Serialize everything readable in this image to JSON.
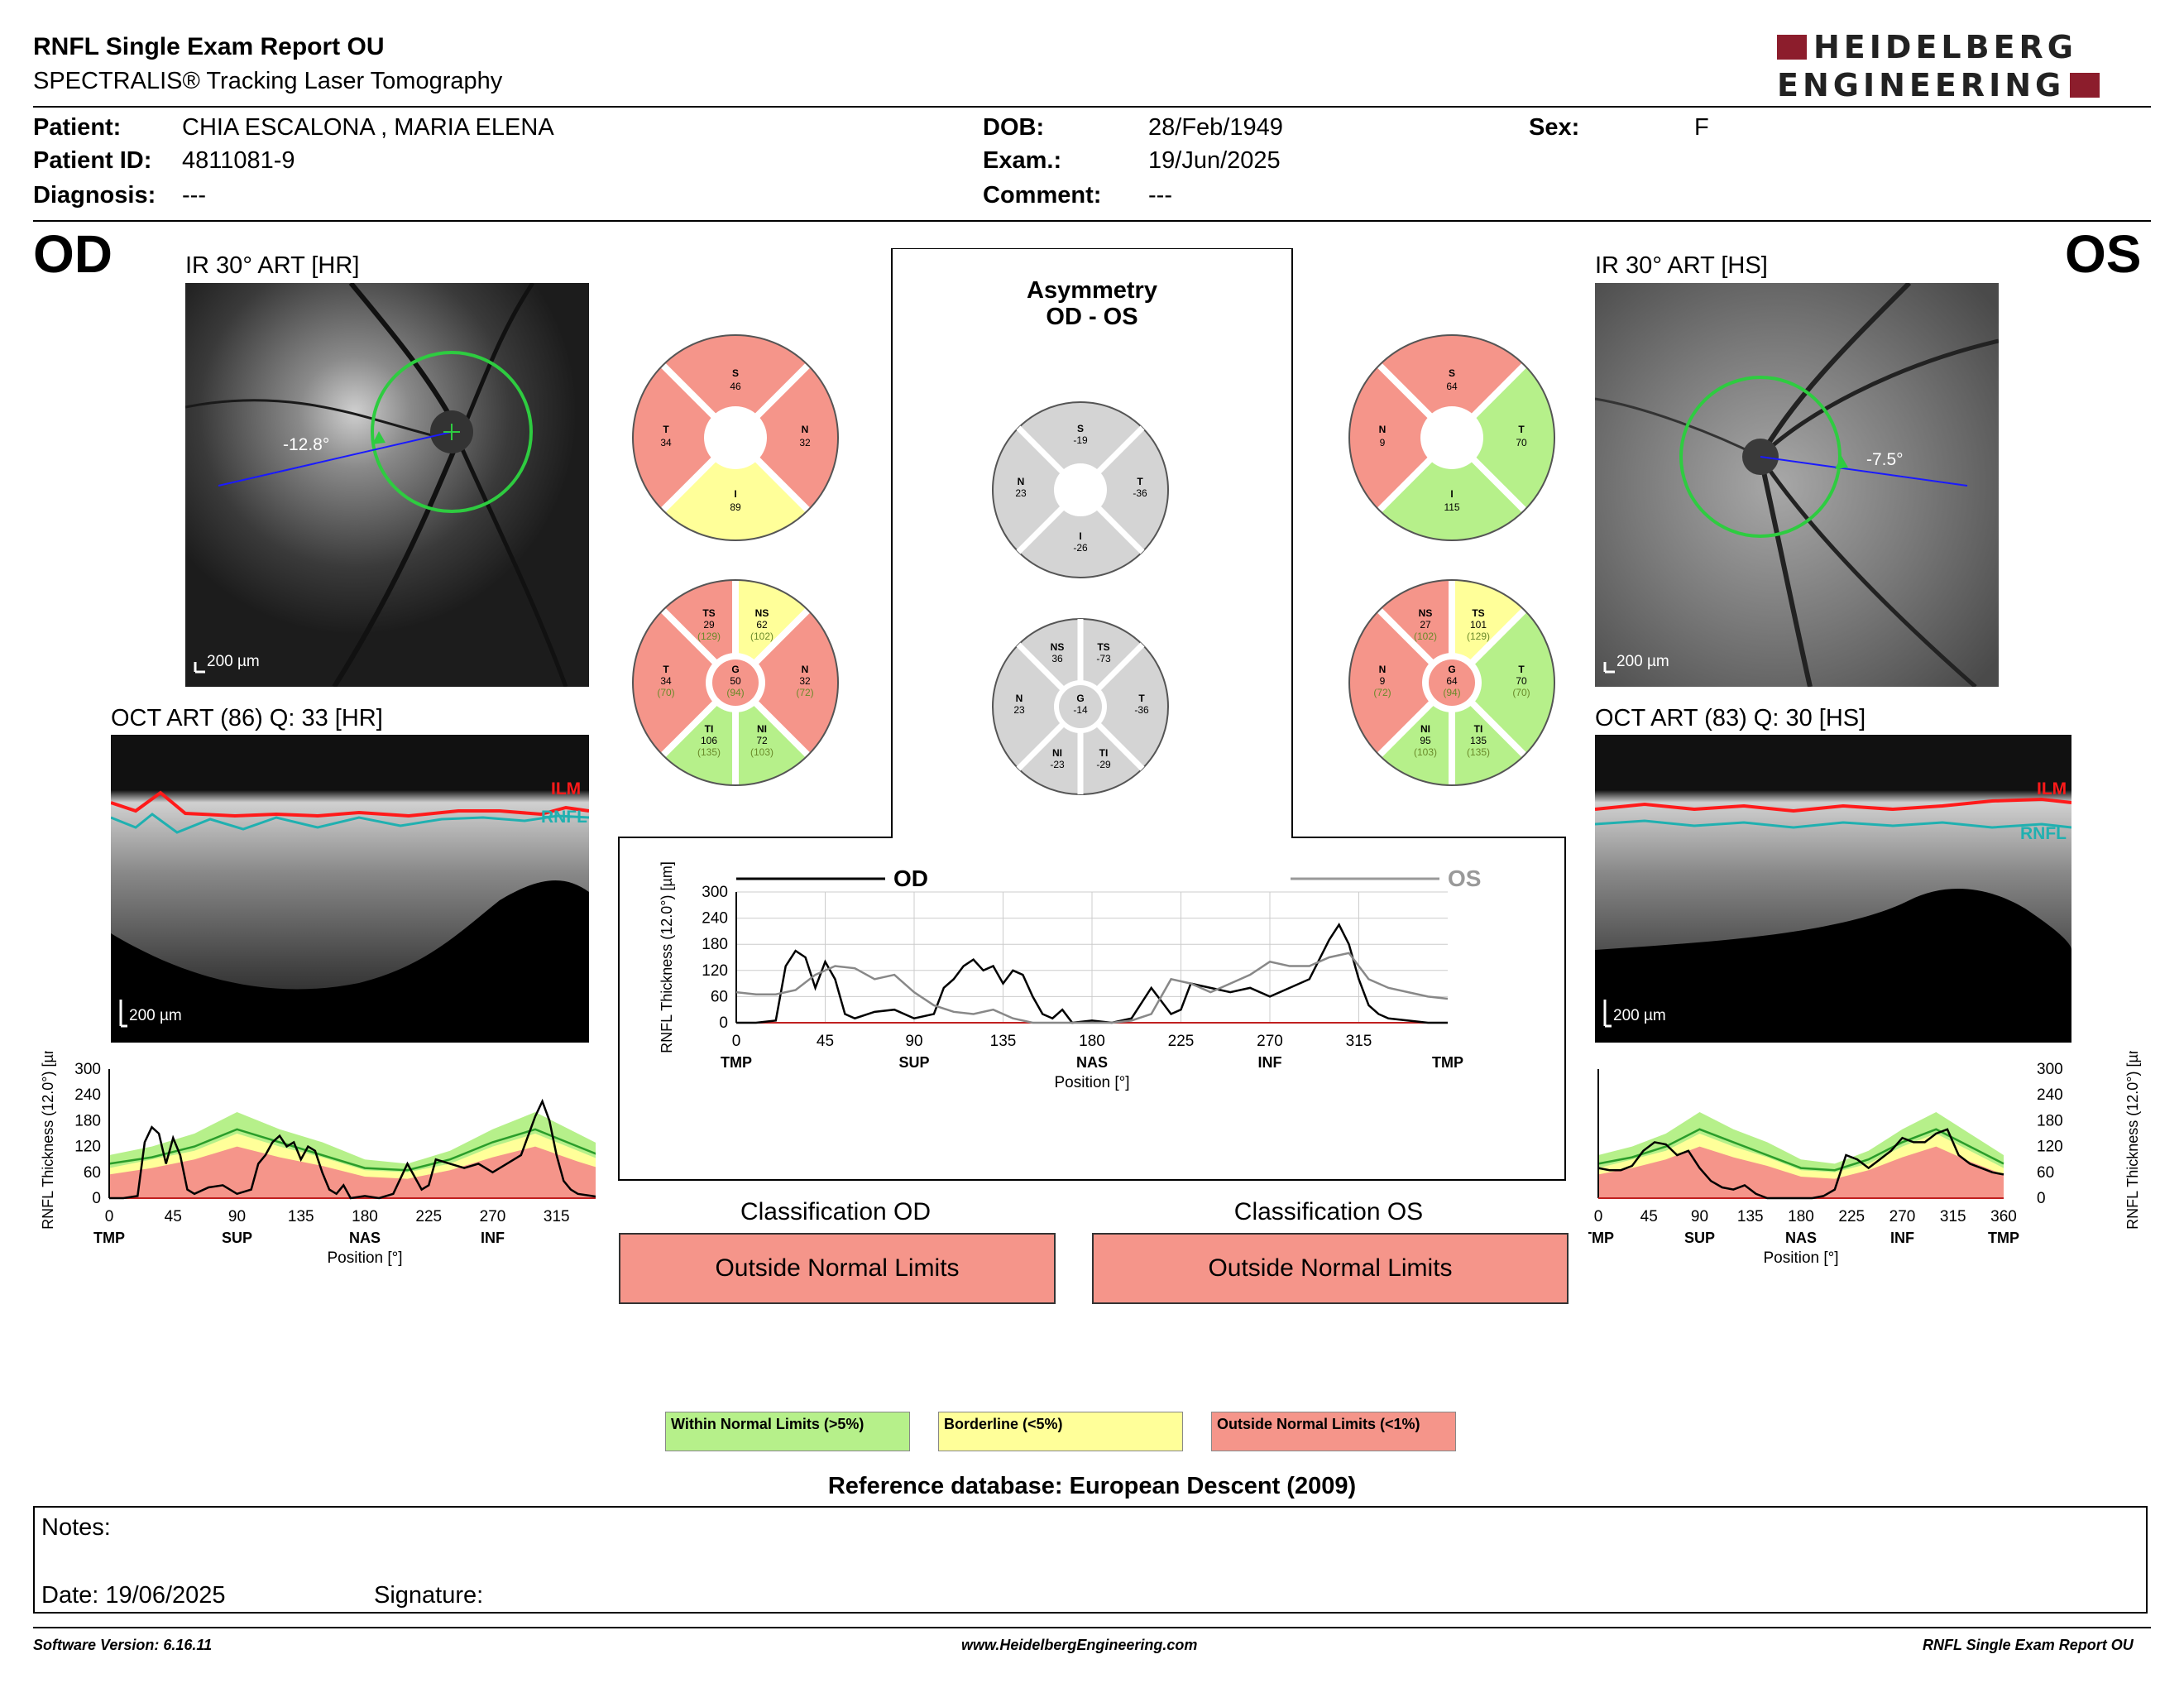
{
  "header": {
    "title": "RNFL Single Exam Report OU",
    "subtitle": "SPECTRALIS® Tracking Laser Tomography",
    "logo_line1": "HEIDELBERG",
    "logo_line2": "ENGINEERING"
  },
  "patient": {
    "patient_label": "Patient:",
    "patient_value": "CHIA ESCALONA , MARIA ELENA",
    "id_label": "Patient ID:",
    "id_value": "4811081-9",
    "diagnosis_label": "Diagnosis:",
    "diagnosis_value": "---",
    "dob_label": "DOB:",
    "dob_value": "28/Feb/1949",
    "exam_label": "Exam.:",
    "exam_value": "19/Jun/2025",
    "comment_label": "Comment:",
    "comment_value": "---",
    "sex_label": "Sex:",
    "sex_value": "F"
  },
  "od": {
    "eye": "OD",
    "ir_caption": "IR 30° ART [HR]",
    "angle": "-12.8°",
    "scale": "200 µm",
    "oct_caption": "OCT ART (86) Q: 33 [HR]",
    "ilm": "ILM",
    "rnfl": "RNFL",
    "oct_scale": "200 µm",
    "sectors4": {
      "S": "46",
      "N": "32",
      "I": "89",
      "T": "34"
    },
    "sectors6": {
      "TS": [
        "29",
        "(129)"
      ],
      "NS": [
        "62",
        "(102)"
      ],
      "N": [
        "32",
        "(72)"
      ],
      "NI": [
        "72",
        "(103)"
      ],
      "TI": [
        "106",
        "(135)"
      ],
      "T": [
        "34",
        "(70)"
      ],
      "G": [
        "50",
        "(94)"
      ]
    },
    "classification_title": "Classification OD",
    "classification": "Outside Normal Limits"
  },
  "os": {
    "eye": "OS",
    "ir_caption": "IR 30° ART [HS]",
    "angle": "-7.5°",
    "scale": "200 µm",
    "oct_caption": "OCT ART (83) Q: 30 [HS]",
    "ilm": "ILM",
    "rnfl": "RNFL",
    "oct_scale": "200 µm",
    "sectors4": {
      "S": "64",
      "T": "70",
      "I": "115",
      "N": "9"
    },
    "sectors6": {
      "NS": [
        "27",
        "(102)"
      ],
      "TS": [
        "101",
        "(129)"
      ],
      "T": [
        "70",
        "(70)"
      ],
      "TI": [
        "135",
        "(135)"
      ],
      "NI": [
        "95",
        "(103)"
      ],
      "N": [
        "9",
        "(72)"
      ],
      "G": [
        "64",
        "(94)"
      ]
    },
    "classification_title": "Classification OS",
    "classification": "Outside Normal Limits"
  },
  "asymmetry": {
    "title1": "Asymmetry",
    "title2": "OD - OS",
    "sectors4": {
      "S": "-19",
      "T": "-36",
      "I": "-26",
      "N": "23"
    },
    "sectors6": {
      "NS": "36",
      "TS": "-73",
      "T": "-36",
      "TI": "-29",
      "NI": "-23",
      "N": "23",
      "G": "-14"
    }
  },
  "chart_data": [
    {
      "type": "line",
      "legend": [
        "OD",
        "OS"
      ],
      "ylabel": "RNFL Thickness (12.0°) [µm]",
      "xlabel": "Position [°]",
      "ylim": [
        0,
        300
      ],
      "yticks": [
        "300",
        "240",
        "180",
        "120",
        "60",
        "0"
      ],
      "xticks": [
        "0",
        "45",
        "90",
        "135",
        "180",
        "225",
        "270",
        "315"
      ],
      "xsectors": [
        "TMP",
        "SUP",
        "NAS",
        "INF",
        "TMP"
      ],
      "series": [
        {
          "name": "OD",
          "x": [
            0,
            10,
            20,
            25,
            30,
            35,
            40,
            45,
            50,
            55,
            60,
            70,
            80,
            90,
            100,
            105,
            110,
            115,
            120,
            125,
            130,
            135,
            140,
            145,
            150,
            155,
            160,
            165,
            170,
            180,
            190,
            200,
            210,
            215,
            220,
            225,
            230,
            240,
            250,
            260,
            270,
            280,
            290,
            300,
            305,
            310,
            315,
            320,
            325,
            330,
            340,
            350,
            360
          ],
          "y": [
            0,
            0,
            5,
            130,
            165,
            150,
            80,
            140,
            100,
            20,
            10,
            25,
            30,
            10,
            20,
            80,
            100,
            130,
            145,
            120,
            130,
            90,
            120,
            110,
            60,
            20,
            10,
            30,
            0,
            5,
            0,
            10,
            80,
            50,
            20,
            30,
            90,
            80,
            70,
            80,
            60,
            80,
            100,
            190,
            225,
            180,
            100,
            40,
            20,
            10,
            5,
            0,
            0
          ]
        },
        {
          "name": "OS",
          "x": [
            0,
            10,
            20,
            30,
            40,
            50,
            60,
            70,
            80,
            90,
            100,
            110,
            120,
            130,
            140,
            150,
            160,
            170,
            180,
            190,
            200,
            210,
            220,
            230,
            240,
            250,
            260,
            270,
            280,
            290,
            300,
            310,
            320,
            330,
            340,
            350,
            360
          ],
          "y": [
            70,
            65,
            65,
            75,
            110,
            130,
            125,
            100,
            110,
            70,
            40,
            25,
            20,
            30,
            10,
            0,
            0,
            0,
            0,
            0,
            5,
            20,
            100,
            90,
            70,
            90,
            110,
            140,
            130,
            130,
            150,
            160,
            100,
            80,
            70,
            60,
            55
          ]
        }
      ]
    },
    {
      "type": "line",
      "title": "OD",
      "ylabel": "RNFL Thickness (12.0°) [µm]",
      "xlabel": "Position [°]",
      "ylim": [
        0,
        300
      ],
      "yticks": [
        "300",
        "240",
        "180",
        "120",
        "60",
        "0"
      ],
      "xticks": [
        "0",
        "45",
        "90",
        "135",
        "180",
        "225",
        "270",
        "315"
      ],
      "xsectors": [
        "TMP",
        "SUP",
        "NAS",
        "INF",
        "TMP"
      ],
      "series": [
        {
          "x": [
            0,
            10,
            20,
            25,
            30,
            35,
            40,
            45,
            50,
            55,
            60,
            70,
            80,
            90,
            100,
            105,
            110,
            115,
            120,
            125,
            130,
            135,
            140,
            145,
            150,
            155,
            160,
            165,
            170,
            180,
            190,
            200,
            210,
            215,
            220,
            225,
            230,
            240,
            250,
            260,
            270,
            280,
            290,
            300,
            305,
            310,
            315,
            320,
            325,
            330,
            340,
            350,
            360
          ],
          "y": [
            0,
            0,
            5,
            130,
            165,
            150,
            80,
            140,
            100,
            20,
            10,
            25,
            30,
            10,
            20,
            80,
            100,
            130,
            145,
            120,
            130,
            90,
            120,
            110,
            60,
            20,
            10,
            30,
            0,
            5,
            0,
            10,
            80,
            50,
            20,
            30,
            90,
            80,
            70,
            80,
            60,
            80,
            100,
            190,
            225,
            180,
            100,
            40,
            20,
            10,
            5,
            0,
            0
          ]
        }
      ]
    },
    {
      "type": "line",
      "title": "OS",
      "ylabel": "RNFL Thickness (12.0°) [µm]",
      "xlabel": "Position [°]",
      "ylim": [
        0,
        300
      ],
      "yticks": [
        "300",
        "240",
        "180",
        "120",
        "60",
        "0"
      ],
      "xticks": [
        "0",
        "45",
        "90",
        "135",
        "180",
        "225",
        "270",
        "315",
        "360"
      ],
      "xsectors": [
        "TMP",
        "SUP",
        "NAS",
        "INF",
        "TMP"
      ],
      "series": [
        {
          "x": [
            0,
            10,
            20,
            30,
            40,
            50,
            60,
            70,
            80,
            90,
            100,
            110,
            120,
            130,
            140,
            150,
            160,
            170,
            180,
            190,
            200,
            210,
            220,
            230,
            240,
            250,
            260,
            270,
            280,
            290,
            300,
            310,
            320,
            330,
            340,
            350,
            360
          ],
          "y": [
            70,
            65,
            65,
            75,
            110,
            130,
            125,
            100,
            110,
            70,
            40,
            25,
            20,
            30,
            10,
            0,
            0,
            0,
            0,
            0,
            5,
            20,
            100,
            90,
            70,
            90,
            110,
            140,
            130,
            130,
            150,
            160,
            100,
            80,
            70,
            60,
            55
          ]
        }
      ]
    }
  ],
  "legend": {
    "wnl": "Within Normal Limits (>5%)",
    "bl": "Borderline (<5%)",
    "onl": "Outside Normal Limits (<1%)",
    "colors": {
      "wnl": "#b6f08a",
      "bl": "#ffff99",
      "onl": "#f5958a"
    }
  },
  "reference": "Reference database: European Descent (2009)",
  "notes": {
    "notes_label": "Notes:",
    "date_label": "Date: 19/06/2025",
    "signature_label": "Signature:"
  },
  "footer": {
    "version": "Software Version: 6.16.11",
    "website": "www.HeidelbergEngineering.com",
    "report_name": "RNFL Single Exam Report OU"
  }
}
